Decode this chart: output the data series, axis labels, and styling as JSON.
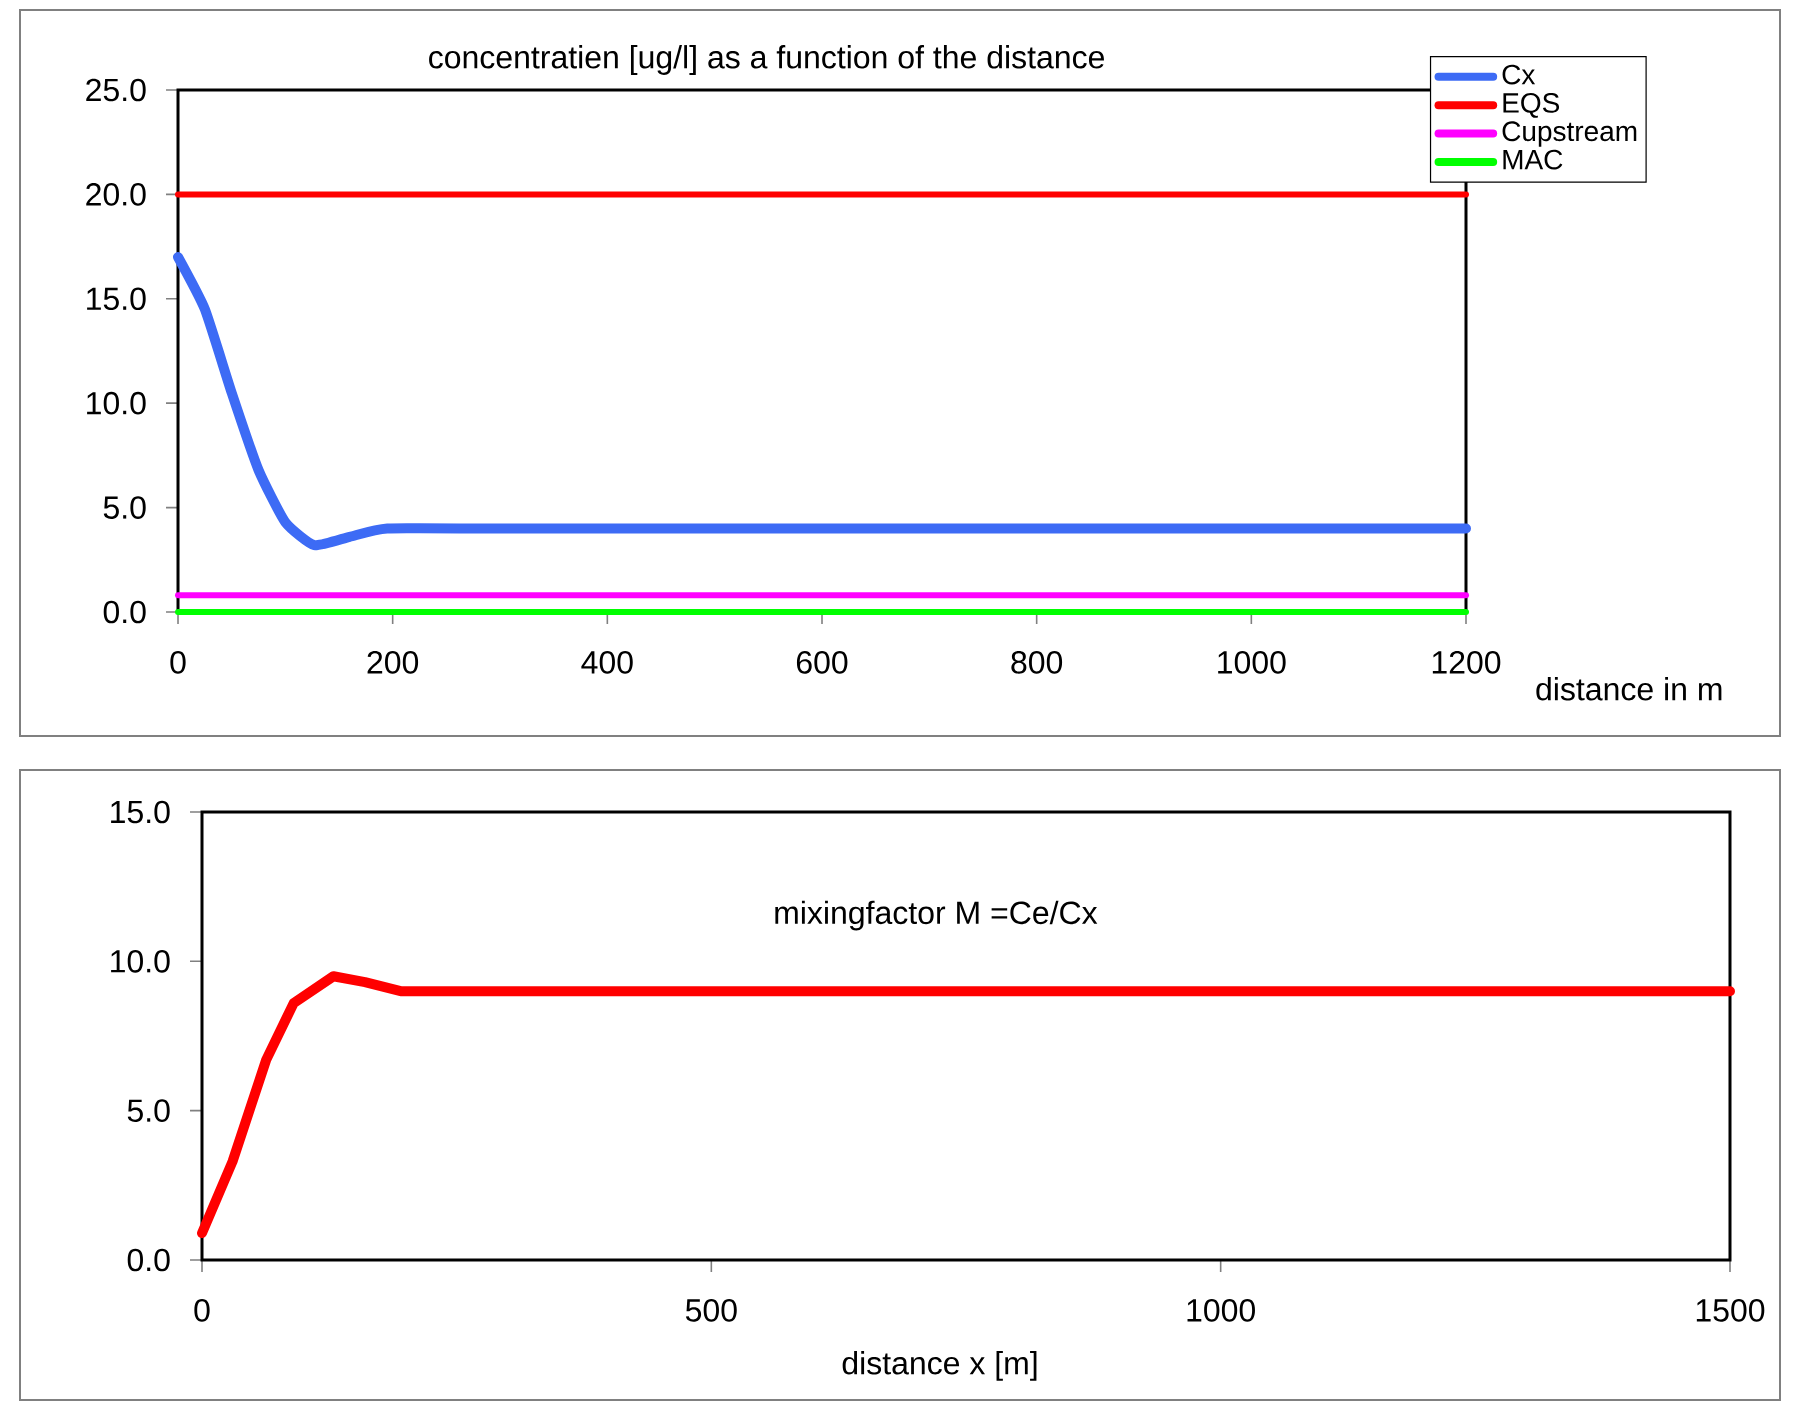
{
  "chart_data": [
    {
      "type": "line",
      "title": "concentratien [ug/l] as a function of the distance",
      "xlabel": "distance in m",
      "xlim": [
        0,
        1200
      ],
      "xticks": [
        0,
        200,
        400,
        600,
        800,
        1000,
        1200
      ],
      "ylim": [
        0,
        25
      ],
      "yticks": [
        {
          "value": 0,
          "label": "0.0"
        },
        {
          "value": 5,
          "label": "5.0"
        },
        {
          "value": 10,
          "label": "10.0"
        },
        {
          "value": 15,
          "label": "15.0"
        },
        {
          "value": 20,
          "label": "20.0"
        },
        {
          "value": 25,
          "label": "25.0"
        }
      ],
      "grid": false,
      "legend": "top right",
      "marker": "none",
      "line_style": "solid",
      "series": [
        {
          "name": "Cx",
          "color": "#3d6bf5",
          "x": [
            0,
            25,
            50,
            75,
            100,
            127,
            160,
            195,
            300,
            1200
          ],
          "values": [
            17,
            14.5,
            10.5,
            6.8,
            4.3,
            3.2,
            3.6,
            4.0,
            4.0,
            4.0
          ]
        },
        {
          "name": "EQS",
          "color": "#ff0000",
          "x": [
            0,
            1200
          ],
          "values": [
            20,
            20
          ]
        },
        {
          "name": "Cupstream",
          "color": "#ff00ff",
          "x": [
            0,
            1200
          ],
          "values": [
            0.8,
            0.8
          ]
        },
        {
          "name": "MAC",
          "color": "#00ff00",
          "x": [
            0,
            1200
          ],
          "values": [
            0,
            0
          ]
        }
      ]
    },
    {
      "type": "line",
      "title": "mixingfactor M =Ce/Cx",
      "xlabel": "distance x [m]",
      "xlim": [
        0,
        1500
      ],
      "xticks": [
        0,
        500,
        1000,
        1500
      ],
      "ylim": [
        0,
        15
      ],
      "yticks": [
        {
          "value": 0,
          "label": "0.0"
        },
        {
          "value": 5,
          "label": "5.0"
        },
        {
          "value": 10,
          "label": "10.0"
        },
        {
          "value": 15,
          "label": "15.0"
        }
      ],
      "grid": false,
      "legend": false,
      "marker": "none",
      "line_style": "solid",
      "series": [
        {
          "color": "#ff0000",
          "x": [
            0,
            30,
            63,
            90,
            129,
            160,
            195,
            1500
          ],
          "values": [
            0.9,
            3.3,
            6.7,
            8.6,
            9.5,
            9.3,
            9.0,
            9.0
          ]
        }
      ]
    }
  ]
}
